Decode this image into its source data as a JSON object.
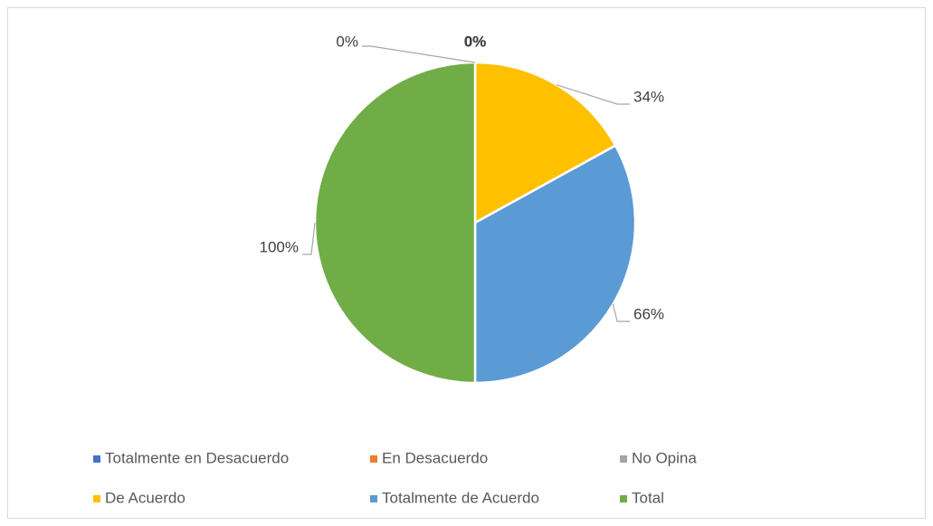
{
  "chart_data": {
    "type": "pie",
    "categories": [
      "Totalmente en Desacuerdo",
      "En Desacuerdo",
      "No Opina",
      "De Acuerdo",
      "Totalmente de Acuerdo",
      "Total"
    ],
    "values": [
      0,
      0,
      0,
      34,
      66,
      100
    ],
    "value_labels": [
      "0%",
      "0%",
      "0%",
      "34%",
      "66%",
      "100%"
    ],
    "colors": [
      "#4472c4",
      "#ed7d31",
      "#a5a5a5",
      "#ffc000",
      "#5b9bd5",
      "#70ad47"
    ],
    "legend": "bottom"
  }
}
